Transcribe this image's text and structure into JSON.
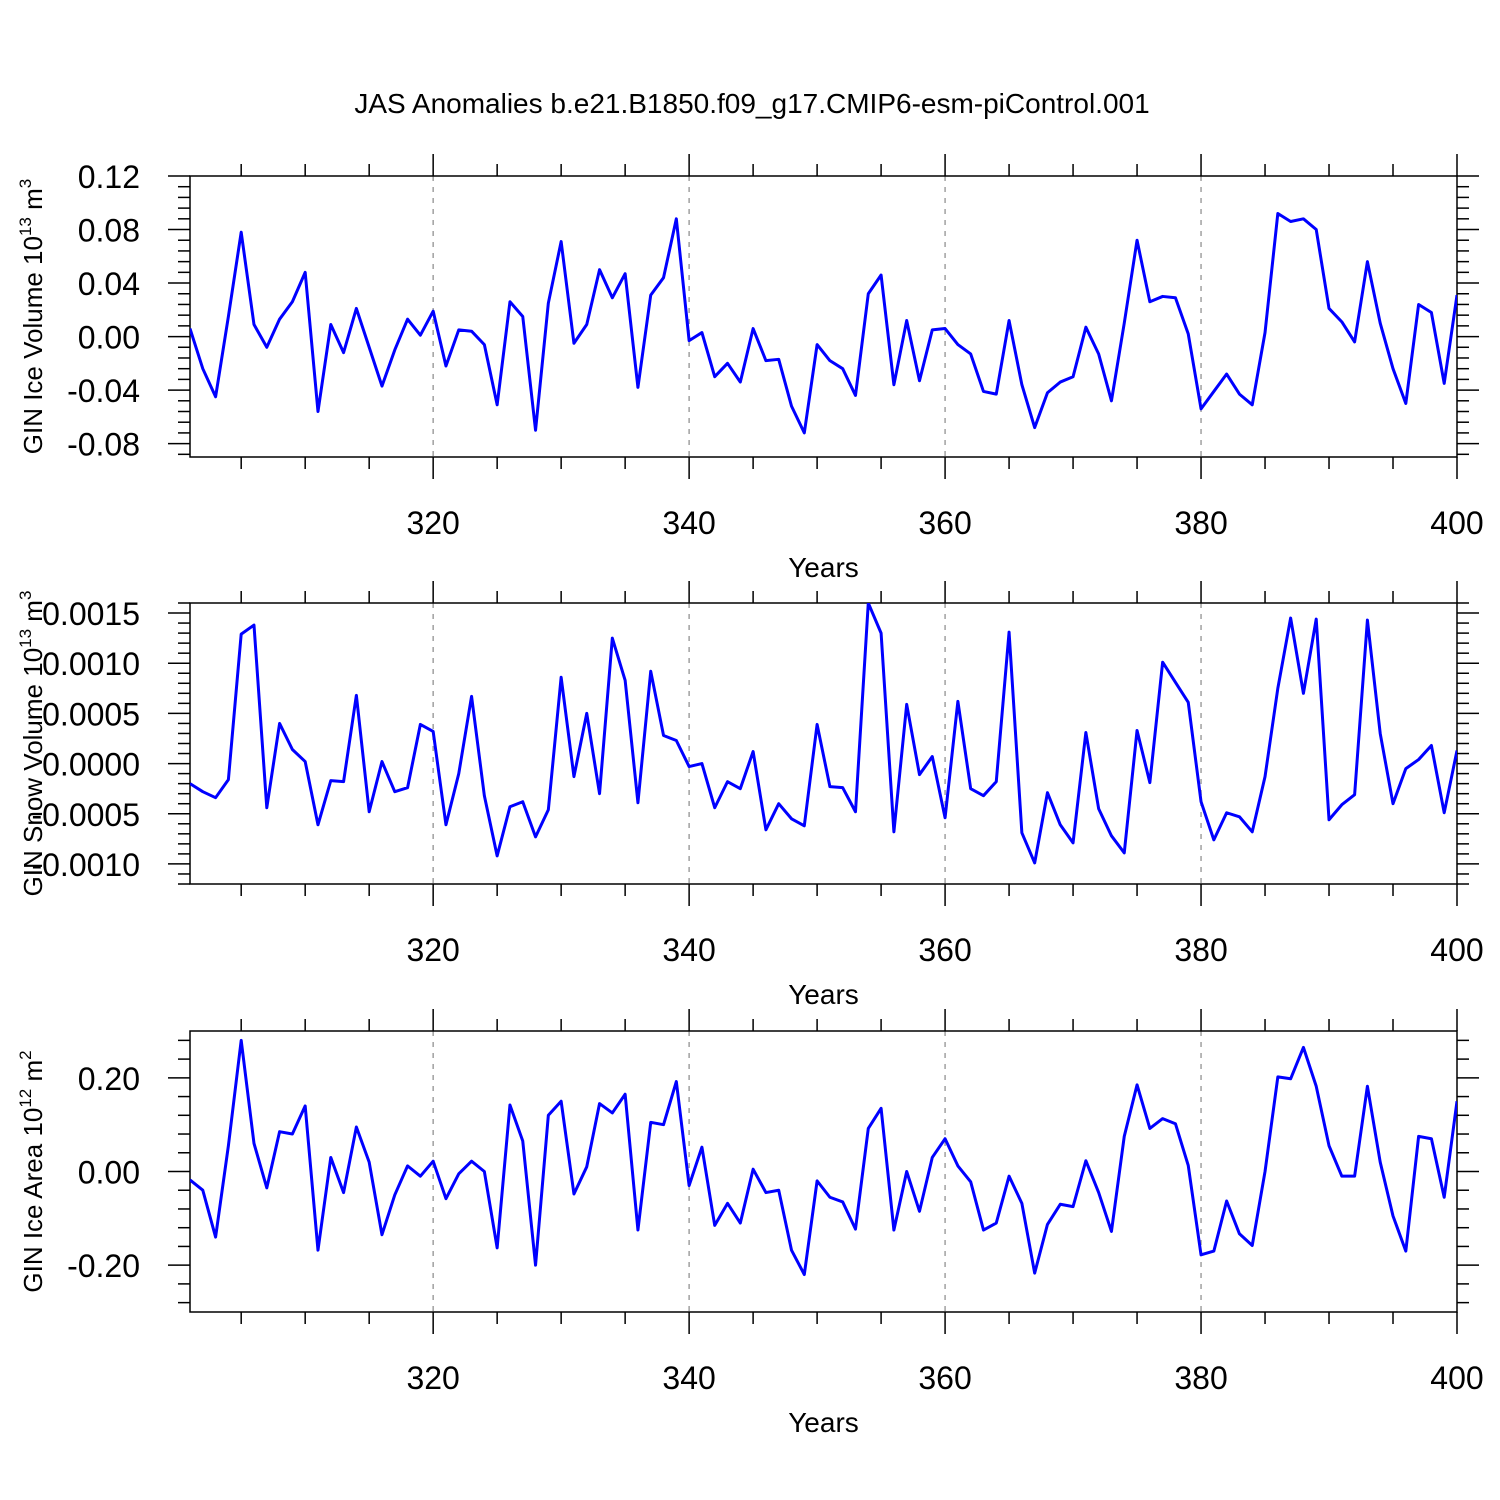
{
  "title": "JAS Anomalies b.e21.B1850.f09_g17.CMIP6-esm-piControl.001",
  "line_color": "#0000ff",
  "chart_data": [
    {
      "type": "line",
      "ylabel": "GIN Ice Volume 10",
      "ylabel_sup": "13",
      "ylabel_unit": " m",
      "ylabel_unit_sup": "3",
      "xlabel": "Years",
      "xlim": [
        301,
        400
      ],
      "ylim": [
        -0.09,
        0.12
      ],
      "xticks": [
        320,
        340,
        360,
        380,
        400
      ],
      "xtick_labels": [
        "320",
        "340",
        "360",
        "380",
        "400"
      ],
      "yticks": [
        0.12,
        0.08,
        0.04,
        0.0,
        -0.04,
        -0.08
      ],
      "ytick_labels": [
        "0.12",
        "0.08",
        "0.04",
        "0.00",
        "-0.04",
        "-0.08"
      ],
      "grid": "vertical dashed at major x ticks",
      "x_start": 301,
      "values": [
        0.006,
        -0.024,
        -0.045,
        0.015,
        0.078,
        0.009,
        -0.008,
        0.013,
        0.026,
        0.048,
        -0.056,
        0.009,
        -0.012,
        0.021,
        -0.008,
        -0.037,
        -0.01,
        0.013,
        0.001,
        0.019,
        -0.022,
        0.005,
        0.004,
        -0.006,
        -0.051,
        0.026,
        0.015,
        -0.07,
        0.025,
        0.071,
        -0.005,
        0.009,
        0.05,
        0.029,
        0.047,
        -0.038,
        0.031,
        0.044,
        0.088,
        -0.003,
        0.003,
        -0.03,
        -0.02,
        -0.034,
        0.006,
        -0.018,
        -0.017,
        -0.052,
        -0.072,
        -0.006,
        -0.018,
        -0.024,
        -0.044,
        0.032,
        0.046,
        -0.036,
        0.012,
        -0.033,
        0.005,
        0.006,
        -0.006,
        -0.013,
        -0.041,
        -0.043,
        0.012,
        -0.036,
        -0.068,
        -0.042,
        -0.034,
        -0.03,
        0.007,
        -0.013,
        -0.048,
        0.01,
        0.072,
        0.026,
        0.03,
        0.029,
        0.002,
        -0.054,
        -0.041,
        -0.028,
        -0.043,
        -0.051,
        0.003,
        0.092,
        0.086,
        0.088,
        0.08,
        0.021,
        0.011,
        -0.004,
        0.056,
        0.01,
        -0.024,
        -0.05,
        0.024,
        0.018,
        -0.035,
        0.031
      ]
    },
    {
      "type": "line",
      "ylabel": "GIN Snow Volume 10",
      "ylabel_sup": "13",
      "ylabel_unit": " m",
      "ylabel_unit_sup": "3",
      "xlabel": "Years",
      "xlim": [
        301,
        400
      ],
      "ylim": [
        -0.0012,
        0.0016
      ],
      "xticks": [
        320,
        340,
        360,
        380,
        400
      ],
      "xtick_labels": [
        "320",
        "340",
        "360",
        "380",
        "400"
      ],
      "yticks": [
        0.0015,
        0.001,
        0.0005,
        0.0,
        -0.0005,
        -0.001
      ],
      "ytick_labels": [
        "0.0015",
        "0.0010",
        "0.0005",
        "0.0000",
        "-0.0005",
        "-0.0010"
      ],
      "grid": "vertical dashed at major x ticks",
      "x_start": 301,
      "values": [
        -0.0002,
        -0.00028,
        -0.00034,
        -0.00016,
        0.00129,
        0.00138,
        -0.00044,
        0.0004,
        0.00014,
        2e-05,
        -0.00061,
        -0.00017,
        -0.00018,
        0.00068,
        -0.00048,
        2e-05,
        -0.00028,
        -0.00024,
        0.00039,
        0.00032,
        -0.00061,
        -0.0001,
        0.00067,
        -0.00032,
        -0.00092,
        -0.00043,
        -0.00038,
        -0.00073,
        -0.00046,
        0.00086,
        -0.00013,
        0.0005,
        -0.0003,
        0.00125,
        0.00083,
        -0.00039,
        0.00092,
        0.00028,
        0.00023,
        -3e-05,
        0.0,
        -0.00044,
        -0.00018,
        -0.00025,
        0.00012,
        -0.00066,
        -0.0004,
        -0.00055,
        -0.00062,
        0.00039,
        -0.00023,
        -0.00024,
        -0.00048,
        0.0016,
        0.0013,
        -0.00068,
        0.00059,
        -0.00011,
        7e-05,
        -0.00054,
        0.00062,
        -0.00025,
        -0.00032,
        -0.00018,
        0.00131,
        -0.00069,
        -0.00099,
        -0.00029,
        -0.00061,
        -0.00079,
        0.00031,
        -0.00045,
        -0.00072,
        -0.00089,
        0.00033,
        -0.00019,
        0.00101,
        0.00081,
        0.00061,
        -0.00038,
        -0.00076,
        -0.00049,
        -0.00053,
        -0.00068,
        -0.00013,
        0.00075,
        0.00145,
        0.0007,
        0.00144,
        -0.00056,
        -0.00041,
        -0.00031,
        0.00143,
        0.0003,
        -0.0004,
        -5e-05,
        4e-05,
        0.00018,
        -0.00049,
        0.00013
      ]
    },
    {
      "type": "line",
      "ylabel": "GIN Ice Area 10",
      "ylabel_sup": "12",
      "ylabel_unit": " m",
      "ylabel_unit_sup": "2",
      "xlabel": "Years",
      "xlim": [
        301,
        400
      ],
      "ylim": [
        -0.3,
        0.3
      ],
      "xticks": [
        320,
        340,
        360,
        380,
        400
      ],
      "xtick_labels": [
        "320",
        "340",
        "360",
        "380",
        "400"
      ],
      "yticks": [
        0.2,
        0.0,
        -0.2
      ],
      "ytick_labels": [
        "0.20",
        "0.00",
        "-0.20"
      ],
      "grid": "vertical dashed at major x ticks",
      "x_start": 301,
      "values": [
        -0.018,
        -0.04,
        -0.14,
        0.055,
        0.28,
        0.06,
        -0.035,
        0.085,
        0.08,
        0.14,
        -0.168,
        0.03,
        -0.045,
        0.095,
        0.02,
        -0.135,
        -0.05,
        0.012,
        -0.01,
        0.022,
        -0.058,
        -0.005,
        0.022,
        0.0,
        -0.163,
        0.142,
        0.065,
        -0.2,
        0.12,
        0.15,
        -0.048,
        0.01,
        0.145,
        0.125,
        0.165,
        -0.125,
        0.105,
        0.1,
        0.192,
        -0.03,
        0.052,
        -0.115,
        -0.068,
        -0.11,
        0.005,
        -0.045,
        -0.04,
        -0.168,
        -0.22,
        -0.02,
        -0.055,
        -0.065,
        -0.123,
        0.092,
        0.135,
        -0.125,
        0.0,
        -0.085,
        0.03,
        0.07,
        0.012,
        -0.022,
        -0.125,
        -0.11,
        -0.01,
        -0.068,
        -0.217,
        -0.113,
        -0.07,
        -0.075,
        0.023,
        -0.045,
        -0.128,
        0.075,
        0.185,
        0.092,
        0.113,
        0.102,
        0.013,
        -0.178,
        -0.17,
        -0.063,
        -0.133,
        -0.158,
        0.0,
        0.202,
        0.198,
        0.265,
        0.182,
        0.055,
        -0.01,
        -0.01,
        0.182,
        0.02,
        -0.095,
        -0.17,
        0.075,
        0.07,
        -0.055,
        0.15
      ]
    }
  ]
}
